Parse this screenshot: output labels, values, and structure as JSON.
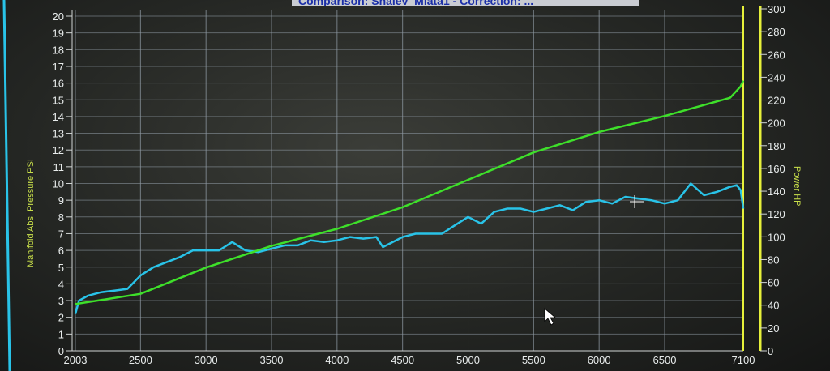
{
  "window": {
    "title": "Comparison: Shalev_Miata1 - Correction: ..."
  },
  "chart_data": {
    "type": "line",
    "title": "",
    "xlabel": "",
    "x_ticks": [
      "2003",
      "2500",
      "3000",
      "3500",
      "4000",
      "4500",
      "5000",
      "5500",
      "6000",
      "6500",
      "7100"
    ],
    "xlim": [
      2003,
      7100
    ],
    "y_left": {
      "label": "Manifold Abs. Pressure PSI",
      "ylim": [
        0,
        20
      ],
      "ticks": [
        "0",
        "1",
        "2",
        "3",
        "4",
        "5",
        "6",
        "7",
        "8",
        "9",
        "10",
        "11",
        "12",
        "13",
        "14",
        "15",
        "16",
        "17",
        "18",
        "19",
        "20"
      ]
    },
    "y_right": {
      "label": "Power HP",
      "ylim": [
        0,
        300
      ],
      "ticks": [
        "0",
        "20",
        "40",
        "60",
        "80",
        "100",
        "120",
        "140",
        "160",
        "180",
        "200",
        "220",
        "240",
        "260",
        "280",
        "300"
      ]
    },
    "grid": true,
    "series": [
      {
        "axis": "left",
        "color": "#29c3e8",
        "x": [
          2003,
          2030,
          2100,
          2200,
          2300,
          2400,
          2500,
          2600,
          2700,
          2800,
          2900,
          3000,
          3100,
          3200,
          3300,
          3400,
          3500,
          3600,
          3700,
          3800,
          3900,
          4000,
          4100,
          4200,
          4300,
          4350,
          4450,
          4500,
          4600,
          4800,
          4900,
          5000,
          5100,
          5200,
          5300,
          5400,
          5500,
          5600,
          5700,
          5800,
          5900,
          6000,
          6100,
          6200,
          6300,
          6400,
          6500,
          6600,
          6700,
          6800,
          6900,
          7000,
          7050,
          7080,
          7100
        ],
        "y": [
          2.2,
          3.0,
          3.3,
          3.5,
          3.6,
          3.7,
          4.5,
          5.0,
          5.3,
          5.6,
          6.0,
          6.0,
          6.0,
          6.5,
          6.0,
          5.9,
          6.1,
          6.3,
          6.3,
          6.6,
          6.5,
          6.6,
          6.8,
          6.7,
          6.8,
          6.2,
          6.6,
          6.8,
          7.0,
          7.0,
          7.5,
          8.0,
          7.6,
          8.3,
          8.5,
          8.5,
          8.3,
          8.5,
          8.7,
          8.4,
          8.9,
          9.0,
          8.8,
          9.2,
          9.1,
          9.0,
          8.8,
          9.0,
          10.0,
          9.3,
          9.5,
          9.8,
          9.9,
          9.6,
          8.5
        ]
      },
      {
        "axis": "right",
        "color": "#3ee02a",
        "x": [
          2003,
          2500,
          3000,
          3500,
          4000,
          4500,
          5000,
          5500,
          6000,
          6500,
          7000,
          7080,
          7100
        ],
        "y": [
          41,
          50,
          73,
          92,
          107,
          126,
          150,
          174,
          192,
          206,
          222,
          232,
          237
        ]
      }
    ]
  }
}
